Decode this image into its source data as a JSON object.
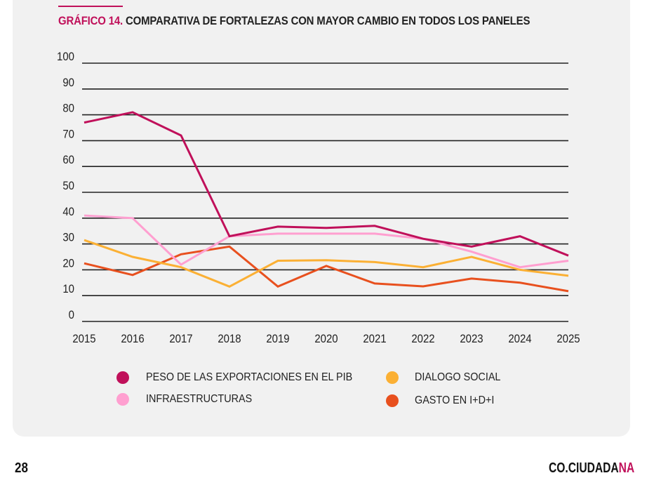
{
  "header": {
    "figure_number": "GRÁFICO 14.",
    "title": "COMPARATIVA DE FORTALEZAS CON MAYOR CAMBIO EN TODOS LOS PANELES"
  },
  "footer": {
    "page_number": "28",
    "brand_main": "CO.CIUDADA",
    "brand_highlight": "NA"
  },
  "colors": {
    "accent": "#c0105a",
    "exports": "#c0105a",
    "infra": "#ff9fd0",
    "dialogo": "#fbb034",
    "gasto": "#e8501e",
    "grid": "#222222",
    "panel_bg": "#f1f1f1"
  },
  "chart_data": {
    "type": "line",
    "title": "COMPARATIVA DE FORTALEZAS CON MAYOR CAMBIO EN TODOS LOS PANELES",
    "xlabel": "",
    "ylabel": "",
    "ylim": [
      0,
      100
    ],
    "yticks": [
      "0",
      "10",
      "20",
      "30",
      "40",
      "50",
      "60",
      "70",
      "80",
      "90",
      "100"
    ],
    "grid": true,
    "legend_position": "bottom",
    "x": [
      "2015",
      "2016",
      "2017",
      "2018",
      "2019",
      "2020",
      "2021",
      "2022",
      "2023",
      "2024",
      "2025"
    ],
    "series": [
      {
        "name": "PESO DE LAS EXPORTACIONES EN EL PIB",
        "color": "#c0105a",
        "values": [
          77,
          81,
          72,
          33,
          36.7,
          36.2,
          37,
          32,
          29,
          33,
          25.5
        ]
      },
      {
        "name": "INFRAESTRUCTURAS",
        "color": "#ff9fd0",
        "values": [
          41,
          40,
          22,
          33,
          34,
          34,
          34,
          32,
          27,
          21,
          23.5
        ]
      },
      {
        "name": "DIALOGO SOCIAL",
        "color": "#fbb034",
        "values": [
          31.5,
          25,
          21,
          13.5,
          23.5,
          23.7,
          23,
          21,
          25,
          20,
          17.7
        ]
      },
      {
        "name": "GASTO EN I+D+I",
        "color": "#e8501e",
        "values": [
          22.5,
          18,
          26,
          29,
          13.5,
          21.5,
          14.7,
          13.6,
          16.6,
          15,
          11.7
        ]
      }
    ]
  }
}
